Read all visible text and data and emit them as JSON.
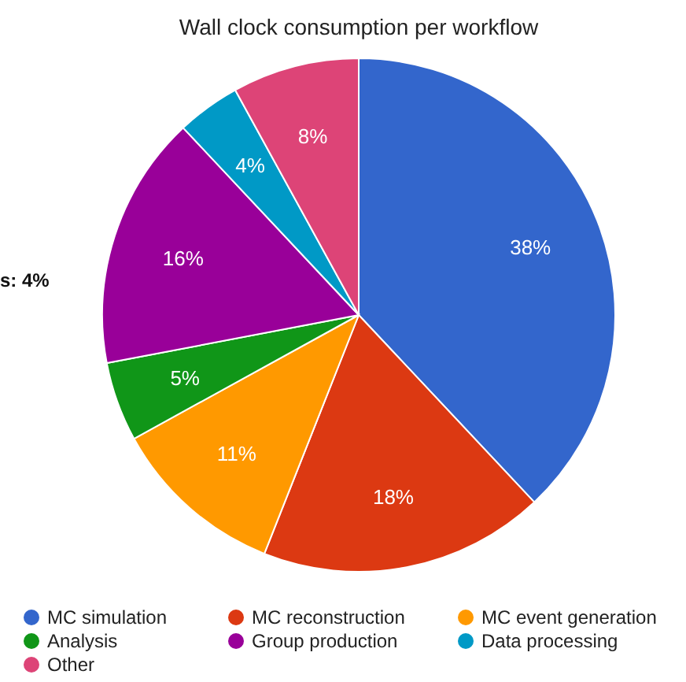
{
  "chart_data": {
    "type": "pie",
    "title": "Wall clock consumption per workflow",
    "categories": [
      "MC simulation",
      "MC reconstruction",
      "MC event generation",
      "Analysis",
      "Group production",
      "Data processing",
      "Other"
    ],
    "values": [
      38,
      18,
      11,
      5,
      16,
      4,
      8
    ],
    "colors": [
      "#3366cc",
      "#dc3912",
      "#ff9900",
      "#109618",
      "#990099",
      "#0099c6",
      "#dd4477"
    ],
    "value_labels": [
      "38%",
      "18%",
      "11%",
      "5%",
      "16%",
      "4%",
      "8%"
    ],
    "legend": "bottom",
    "annotations": [
      {
        "text": "s: 4%"
      }
    ]
  }
}
